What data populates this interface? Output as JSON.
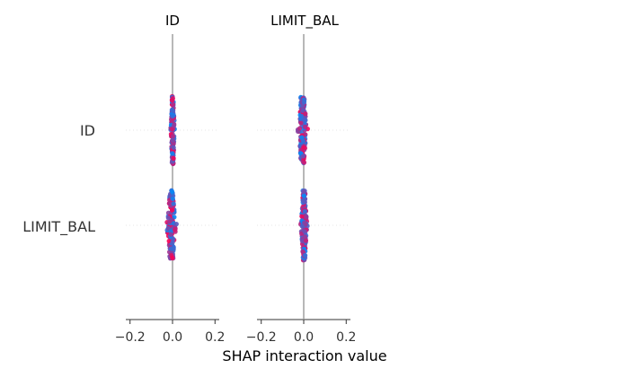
{
  "chart_data": {
    "type": "scatter",
    "title": "",
    "xlabel": "SHAP interaction value",
    "ylabel": "",
    "xlim": [
      -0.22,
      0.22
    ],
    "x_ticks": [
      -0.2,
      0.0,
      0.2
    ],
    "x_tick_labels": [
      "−0.2",
      "0.0",
      "0.2"
    ],
    "columns": [
      "ID",
      "LIMIT_BAL"
    ],
    "rows": [
      "ID",
      "LIMIT_BAL"
    ],
    "grid": false,
    "legend": "none",
    "color_low": "#008bfb",
    "color_high": "#ff0052",
    "cells": [
      {
        "row": "ID",
        "col": "ID",
        "x_range": [
          -0.01,
          0.012
        ],
        "spread": 0.35
      },
      {
        "row": "ID",
        "col": "LIMIT_BAL",
        "x_range": [
          -0.03,
          0.02
        ],
        "spread": 0.34
      },
      {
        "row": "LIMIT_BAL",
        "col": "ID",
        "x_range": [
          -0.03,
          0.02
        ],
        "spread": 0.36
      },
      {
        "row": "LIMIT_BAL",
        "col": "LIMIT_BAL",
        "x_range": [
          -0.015,
          0.018
        ],
        "spread": 0.36
      }
    ]
  }
}
